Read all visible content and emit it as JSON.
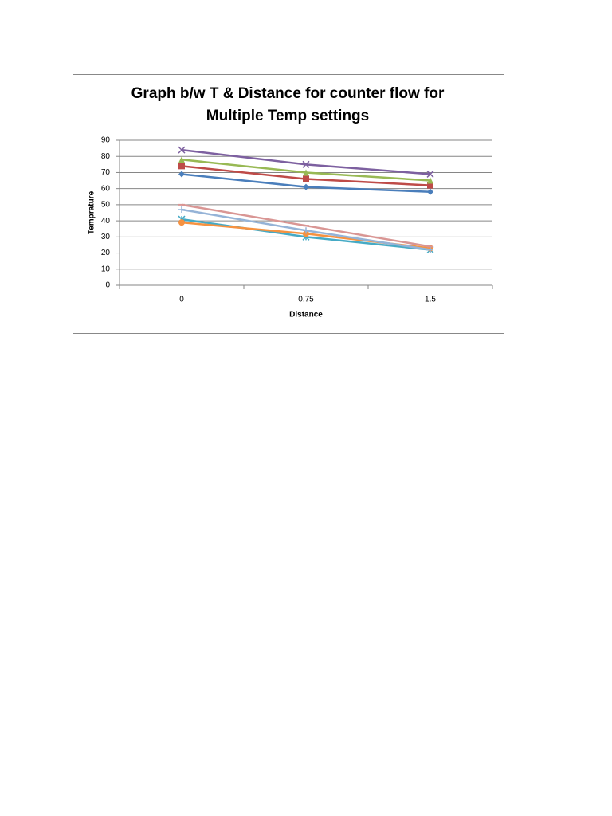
{
  "chart_data": {
    "type": "line",
    "title": [
      "Graph b/w T & Distance for counter flow for",
      "Multiple Temp settings"
    ],
    "x_label": "Distance",
    "y_label": "Temprature",
    "categories": [
      "0",
      "0.75",
      "1.5"
    ],
    "ylim": [
      0,
      90
    ],
    "yticks": [
      0,
      10,
      20,
      30,
      40,
      50,
      60,
      70,
      80,
      90
    ],
    "grid": true,
    "series": [
      {
        "color": "#4a7ebb",
        "marker": "diamond",
        "values": [
          69,
          61,
          58
        ]
      },
      {
        "color": "#be4b48",
        "marker": "square",
        "values": [
          74,
          66,
          62
        ]
      },
      {
        "color": "#98b954",
        "marker": "triangle",
        "values": [
          78,
          70,
          65
        ]
      },
      {
        "color": "#7d60a0",
        "marker": "x",
        "values": [
          84,
          75,
          69
        ]
      },
      {
        "color": "#46aac5",
        "marker": "star",
        "values": [
          41,
          30,
          22
        ]
      },
      {
        "color": "#f69240",
        "marker": "circle",
        "values": [
          39,
          32,
          23
        ]
      },
      {
        "color": "#95b3d7",
        "marker": "plus",
        "values": [
          47,
          34,
          22
        ]
      },
      {
        "color": "#d99694",
        "marker": "dash",
        "values": [
          50,
          37,
          24
        ]
      }
    ]
  }
}
